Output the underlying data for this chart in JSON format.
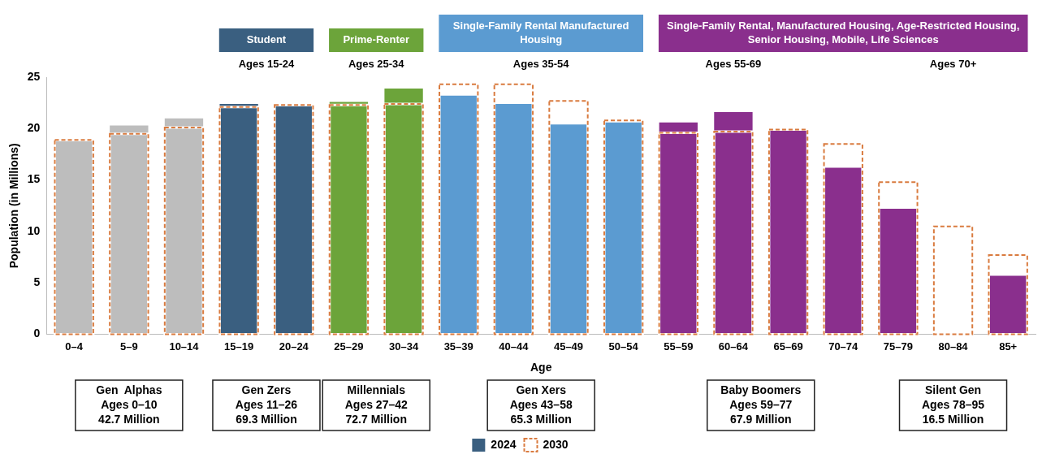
{
  "chart_data": {
    "type": "bar",
    "xlabel": "Age",
    "ylabel": "Population (in Millions)",
    "categories": [
      "0–4",
      "5–9",
      "10–14",
      "15–19",
      "20–24",
      "25–29",
      "30–34",
      "35–39",
      "40–44",
      "45–49",
      "50–54",
      "55–59",
      "60–64",
      "65–69",
      "70–74",
      "75–79",
      "80–84",
      "85+"
    ],
    "series": [
      {
        "name": "2024",
        "color": "#3a5f80",
        "colors": [
          "#bdbdbd",
          "#bdbdbd",
          "#bdbdbd",
          "#3a5f80",
          "#3a5f80",
          "#6ca43a",
          "#6ca43a",
          "#5b9bd1",
          "#5b9bd1",
          "#5b9bd1",
          "#5b9bd1",
          "#8a2f8d",
          "#8a2f8d",
          "#8a2f8d",
          "#8a2f8d",
          "#8a2f8d",
          null,
          "#8a2f8d"
        ],
        "values": [
          18.8,
          20.3,
          21.0,
          22.4,
          22.2,
          22.6,
          23.9,
          23.2,
          22.4,
          20.4,
          20.6,
          20.6,
          21.6,
          19.8,
          16.2,
          12.2,
          null,
          5.7
        ]
      },
      {
        "name": "2030",
        "color": "#d97b3f",
        "line_style": "dashed",
        "values": [
          18.9,
          19.5,
          20.1,
          22.1,
          22.3,
          22.3,
          22.4,
          24.3,
          24.3,
          22.7,
          20.8,
          19.6,
          19.7,
          19.9,
          18.5,
          14.8,
          10.5,
          7.7
        ]
      }
    ],
    "ylim": [
      0,
      25
    ],
    "yticks": [
      0,
      5,
      10,
      15,
      20,
      25
    ],
    "legend": "bottom",
    "annotations": [
      "Student",
      "Ages 15-24",
      "Prime-Renter",
      "Ages 25-34",
      "Single-Family Rental Manufactured Housing",
      "Ages 35-54",
      "Single-Family Rental, Manufactured Housing, Age-Restricted Housing, Senior Housing, Mobile, Life Sciences",
      "Ages 55-69",
      "Ages 70+",
      "Gen  Alphas\nAges 0–10\n42.7 Million",
      "Gen Zers\nAges 11–26\n69.3 Million",
      "Millennials\nAges 27–42\n72.7 Million",
      "Gen Xers\nAges 43–58\n65.3 Million",
      "Baby Boomers\nAges 59–77\n67.9 Million",
      "Silent Gen\nAges 78–95\n16.5 Million"
    ]
  }
}
